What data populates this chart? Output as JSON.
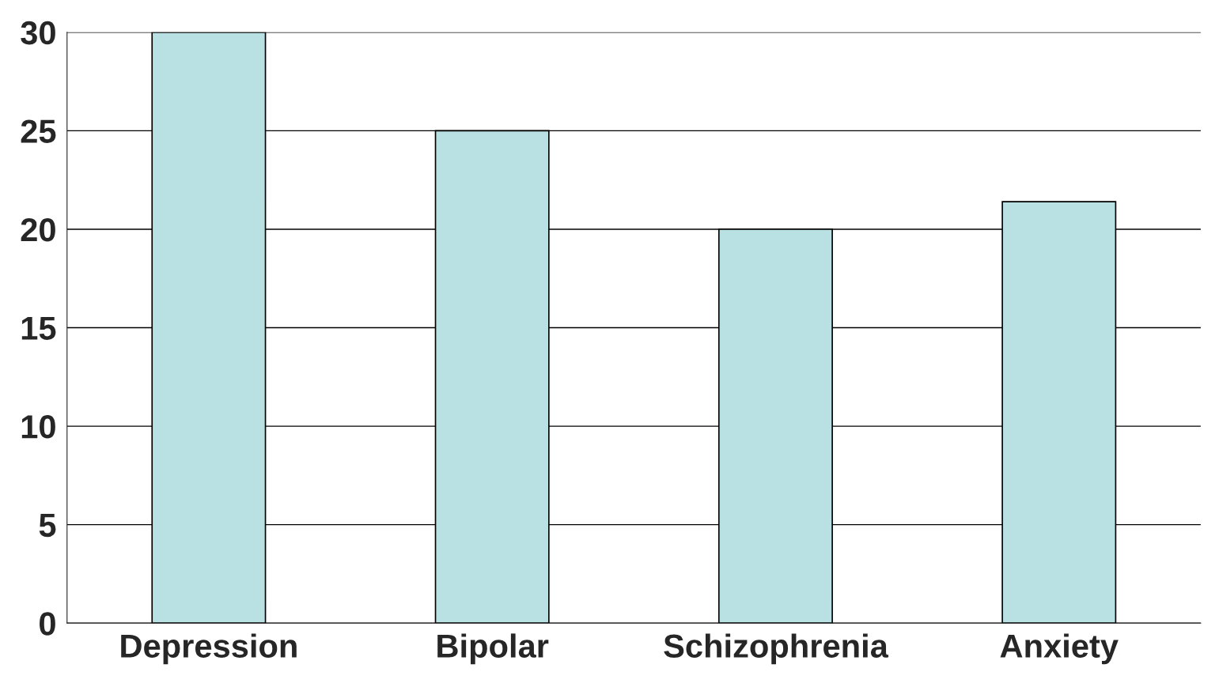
{
  "chart_data": {
    "type": "bar",
    "categories": [
      "Depression",
      "Bipolar",
      "Schizophrenia",
      "Anxiety"
    ],
    "values": [
      30,
      25,
      20,
      21.4
    ],
    "color": "#b9e0e2",
    "ylim": [
      0,
      30
    ],
    "yticks": [
      0,
      5,
      10,
      15,
      20,
      25,
      30
    ],
    "grid": "y"
  }
}
